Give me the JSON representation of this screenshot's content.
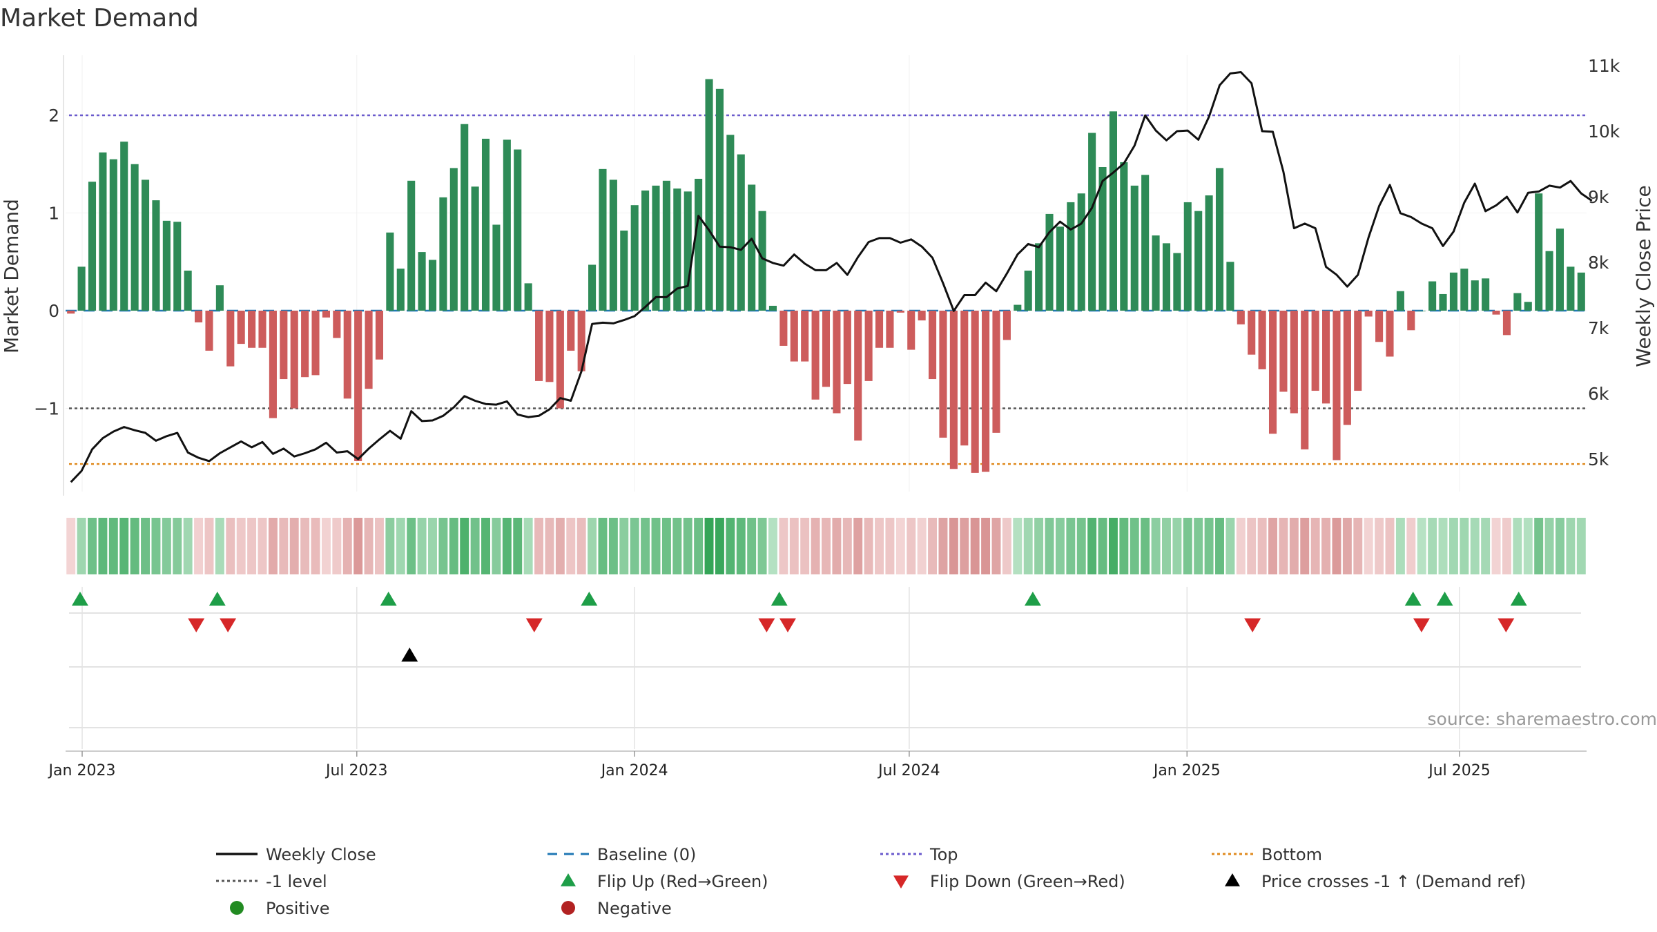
{
  "title": "Market Demand",
  "source": "source: sharemaestro.com",
  "colors": {
    "positive": "#2e8b57",
    "negative": "#cd5c5c",
    "price": "#111111",
    "baseline": "#1f77b4",
    "top": "#6a5acd",
    "bottom": "#e08a1e",
    "minus1": "#555555",
    "flip_up": "#1e9e48",
    "flip_down": "#d62728",
    "cross": "#000000",
    "grid": "#e3e3e3"
  },
  "chart_data": {
    "type": "bar",
    "title": "Market Demand",
    "ylabel_left": "Market Demand",
    "ylabel_right": "Weekly Close Price",
    "ylim_left": [
      -1.9,
      2.6
    ],
    "ylim_right": [
      4400,
      11300
    ],
    "left_ticks": [
      {
        "value": 2,
        "label": "2"
      },
      {
        "value": 1,
        "label": "1"
      },
      {
        "value": 0,
        "label": "0"
      },
      {
        "value": -1,
        "label": "−1"
      }
    ],
    "right_ticks": [
      {
        "value": 11000,
        "label": "11k"
      },
      {
        "value": 10000,
        "label": "10k"
      },
      {
        "value": 9000,
        "label": "9k"
      },
      {
        "value": 8000,
        "label": "8k"
      },
      {
        "value": 7000,
        "label": "7k"
      },
      {
        "value": 6000,
        "label": "6k"
      },
      {
        "value": 5000,
        "label": "5k"
      }
    ],
    "x_ticks": [
      {
        "week": 0,
        "label": "Jan 2023"
      },
      {
        "week": 26,
        "label": "Jul 2023"
      },
      {
        "week": 52.3,
        "label": "Jan 2024"
      },
      {
        "week": 78.3,
        "label": "Jul 2024"
      },
      {
        "week": 104.6,
        "label": "Jan 2025"
      },
      {
        "week": 130.4,
        "label": "Jul 2025"
      }
    ],
    "start_week": -1.5,
    "levels": {
      "top": 2.0,
      "minus1": -1.0,
      "bottom": -1.57,
      "baseline": 0
    },
    "demand": [
      -0.03,
      0.45,
      1.32,
      1.62,
      1.55,
      1.73,
      1.5,
      1.34,
      1.13,
      0.92,
      0.91,
      0.41,
      -0.12,
      -0.41,
      0.26,
      -0.57,
      -0.34,
      -0.38,
      -0.38,
      -1.1,
      -0.7,
      -1.0,
      -0.68,
      -0.66,
      -0.07,
      -0.28,
      -0.9,
      -1.54,
      -0.8,
      -0.5,
      0.8,
      0.43,
      1.33,
      0.6,
      0.52,
      1.16,
      1.46,
      1.91,
      1.27,
      1.76,
      0.88,
      1.75,
      1.65,
      0.28,
      -0.72,
      -0.73,
      -1.0,
      -0.41,
      -0.62,
      0.47,
      1.45,
      1.34,
      0.82,
      1.08,
      1.23,
      1.28,
      1.33,
      1.25,
      1.22,
      1.35,
      2.37,
      2.27,
      1.8,
      1.6,
      1.29,
      1.02,
      0.05,
      -0.36,
      -0.52,
      -0.52,
      -0.91,
      -0.78,
      -1.05,
      -0.75,
      -1.33,
      -0.72,
      -0.38,
      -0.38,
      -0.02,
      -0.4,
      -0.1,
      -0.7,
      -1.3,
      -1.62,
      -1.38,
      -1.66,
      -1.65,
      -1.25,
      -0.3,
      0.06,
      0.41,
      0.69,
      0.99,
      0.86,
      1.11,
      1.2,
      1.82,
      1.47,
      2.04,
      1.52,
      1.28,
      1.39,
      0.77,
      0.69,
      0.59,
      1.11,
      1.02,
      1.18,
      1.46,
      0.5,
      -0.14,
      -0.45,
      -0.6,
      -1.26,
      -0.83,
      -1.05,
      -1.42,
      -0.82,
      -0.95,
      -1.53,
      -1.17,
      -0.82,
      -0.06,
      -0.32,
      -0.47,
      0.2,
      -0.2,
      0.0,
      0.3,
      0.17,
      0.39,
      0.43,
      0.31,
      0.33,
      -0.04,
      -0.25,
      0.18,
      0.09,
      1.2,
      0.61,
      0.84,
      0.45,
      0.39
    ],
    "price": [
      4650,
      4820,
      5150,
      5320,
      5420,
      5490,
      5440,
      5400,
      5280,
      5350,
      5400,
      5100,
      5020,
      4970,
      5090,
      5180,
      5270,
      5180,
      5260,
      5080,
      5160,
      5040,
      5090,
      5150,
      5250,
      5100,
      5120,
      5000,
      5160,
      5300,
      5430,
      5310,
      5730,
      5580,
      5590,
      5660,
      5790,
      5960,
      5890,
      5840,
      5830,
      5880,
      5680,
      5640,
      5660,
      5760,
      5930,
      5890,
      6340,
      7060,
      7080,
      7070,
      7120,
      7180,
      7320,
      7470,
      7470,
      7600,
      7640,
      8710,
      8490,
      8240,
      8230,
      8190,
      8360,
      8060,
      7990,
      7950,
      8120,
      7980,
      7880,
      7880,
      7990,
      7810,
      8080,
      8310,
      8370,
      8370,
      8300,
      8350,
      8240,
      8070,
      7680,
      7260,
      7500,
      7500,
      7690,
      7560,
      7830,
      8120,
      8280,
      8230,
      8460,
      8620,
      8500,
      8590,
      8830,
      9240,
      9370,
      9510,
      9780,
      10240,
      10010,
      9860,
      10000,
      10010,
      9870,
      10220,
      10700,
      10880,
      10900,
      10730,
      10000,
      9990,
      9380,
      8520,
      8590,
      8520,
      7930,
      7810,
      7630,
      7810,
      8380,
      8860,
      9180,
      8750,
      8690,
      8590,
      8520,
      8250,
      8470,
      8910,
      9200,
      8780,
      8870,
      9000,
      8760,
      9060,
      9080,
      9170,
      9140,
      9240,
      9050,
      8940
    ],
    "markers": {
      "flip_up_weeks": [
        -0.2,
        12.8,
        29,
        48,
        66,
        90,
        126,
        129,
        136
      ],
      "flip_down_weeks": [
        10.8,
        13.8,
        42.8,
        64.8,
        66.8,
        110.8,
        126.8,
        134.8
      ],
      "cross_weeks": [
        31
      ]
    }
  },
  "legend": [
    {
      "label": "Weekly Close",
      "type": "line-solid",
      "color": "#111111"
    },
    {
      "label": "Baseline (0)",
      "type": "line-dash",
      "color": "#1f77b4"
    },
    {
      "label": "Top",
      "type": "line-dot",
      "color": "#6a5acd"
    },
    {
      "label": "Bottom",
      "type": "line-dot",
      "color": "#e08a1e"
    },
    {
      "label": "-1 level",
      "type": "line-dot",
      "color": "#555555"
    },
    {
      "label": "Flip Up (Red→Green)",
      "type": "tri-up",
      "color": "#1e9e48"
    },
    {
      "label": "Flip Down (Green→Red)",
      "type": "tri-down",
      "color": "#d62728"
    },
    {
      "label": "Price crosses -1 ↑ (Demand ref)",
      "type": "tri-up",
      "color": "#000000"
    },
    {
      "label": "Positive",
      "type": "dot",
      "color": "#228b22"
    },
    {
      "label": "Negative",
      "type": "dot",
      "color": "#b22222"
    }
  ]
}
